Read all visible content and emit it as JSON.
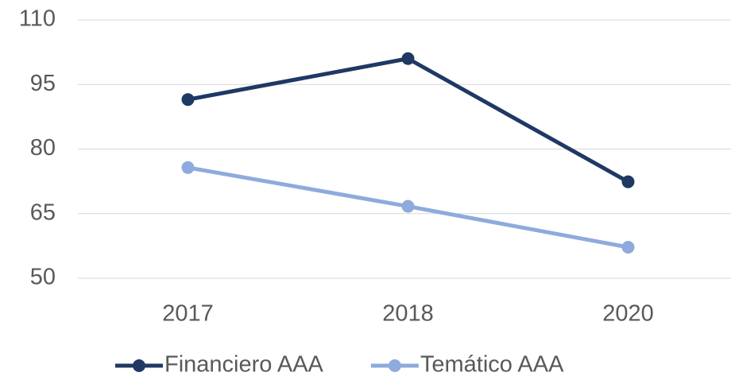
{
  "chart_data": {
    "type": "line",
    "categories": [
      "2017",
      "2018",
      "2020"
    ],
    "series": [
      {
        "name": "Financiero AAA",
        "color": "#1f3864",
        "values": [
          91.5,
          101,
          72.4
        ]
      },
      {
        "name": "Temático AAA",
        "color": "#8faadc",
        "values": [
          75.7,
          66.7,
          57.2
        ]
      }
    ],
    "ylim": [
      50,
      110
    ],
    "yticks": [
      50,
      65,
      80,
      95,
      110
    ],
    "grid": true,
    "legend": "bottom"
  }
}
